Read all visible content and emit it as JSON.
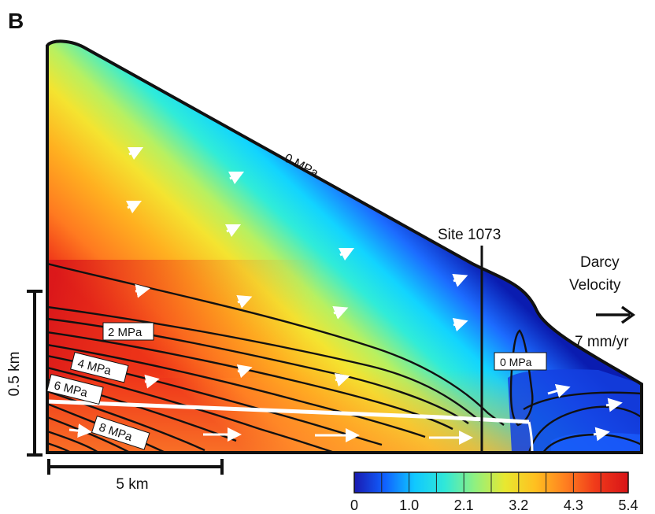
{
  "panel_label": "B",
  "contour_labels": {
    "top": "0 MPa",
    "c2": "2 MPa",
    "c4": "4 MPa",
    "c6": "6 MPa",
    "c8": "8 MPa",
    "toe": "0 MPa"
  },
  "site_label": "Site 1073",
  "legend": {
    "line1": "Darcy",
    "line2": "Velocity",
    "value": "7 mm/yr"
  },
  "scale_bars": {
    "vertical": "0.5 km",
    "horizontal": "5 km"
  },
  "colorbar": {
    "ticks": [
      "0",
      "1.0",
      "2.1",
      "3.2",
      "4.3",
      "5.4"
    ],
    "colors": [
      "#1a1ab0",
      "#1060ff",
      "#10c8ff",
      "#30e8d8",
      "#90f080",
      "#e8e830",
      "#ffc020",
      "#ff8020",
      "#f03a1a",
      "#d81418"
    ]
  }
}
